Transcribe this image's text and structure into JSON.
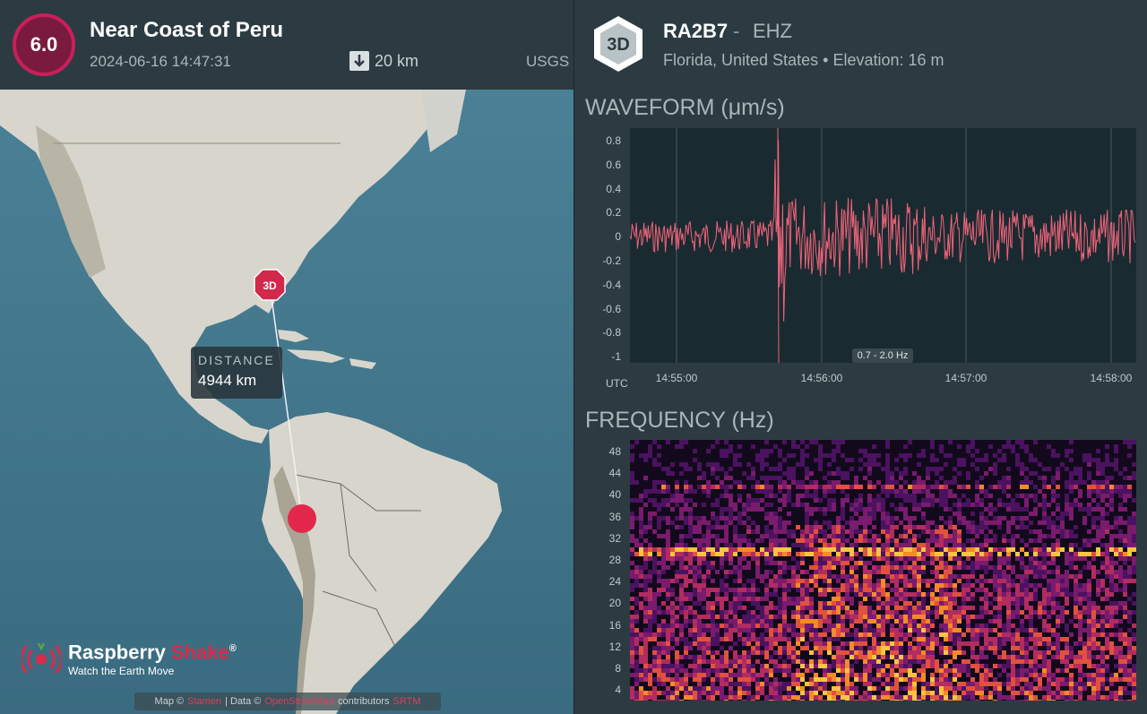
{
  "event": {
    "magnitude": "6.0",
    "title": "Near Coast of Peru",
    "datetime": "2024-06-16 14:47:31",
    "depth": "20 km",
    "source": "USGS",
    "colors": {
      "badge_fill": "#7a1b3d",
      "badge_ring": "#c8205a"
    }
  },
  "map": {
    "station_marker_label": "3D",
    "distance_label": "DISTANCE",
    "distance_value": "4944 km",
    "attribution": {
      "prefix": "Map ©",
      "link1": "Stamen",
      "mid": "| Data ©",
      "link2": "OpenStreetMap",
      "suffix": "contributors",
      "link3": "SRTM"
    },
    "logo": {
      "name_a": "Raspberry",
      "name_b": "Shake",
      "reg": "®",
      "tagline": "Watch the Earth Move"
    }
  },
  "station": {
    "icon_label": "3D",
    "id": "RA2B7",
    "separator": "-",
    "channel": "EHZ",
    "location": "Florida, United States",
    "elevation": "Elevation: 16 m",
    "bullet": "•"
  },
  "waveform": {
    "title": "WAVEFORM (μm/s)",
    "utc_label": "UTC",
    "filter": "0.7 - 2.0 Hz",
    "y_ticks": [
      "0.8",
      "0.6",
      "0.4",
      "0.2",
      "0",
      "-0.2",
      "-0.4",
      "-0.6",
      "-0.8",
      "-1"
    ],
    "x_ticks": [
      "14:55:00",
      "14:56:00",
      "14:57:00",
      "14:58:00"
    ],
    "trace_color": "#f0647a"
  },
  "frequency": {
    "title": "FREQUENCY (Hz)",
    "y_ticks": [
      "48",
      "44",
      "40",
      "36",
      "32",
      "28",
      "24",
      "20",
      "16",
      "12",
      "8",
      "4"
    ]
  }
}
